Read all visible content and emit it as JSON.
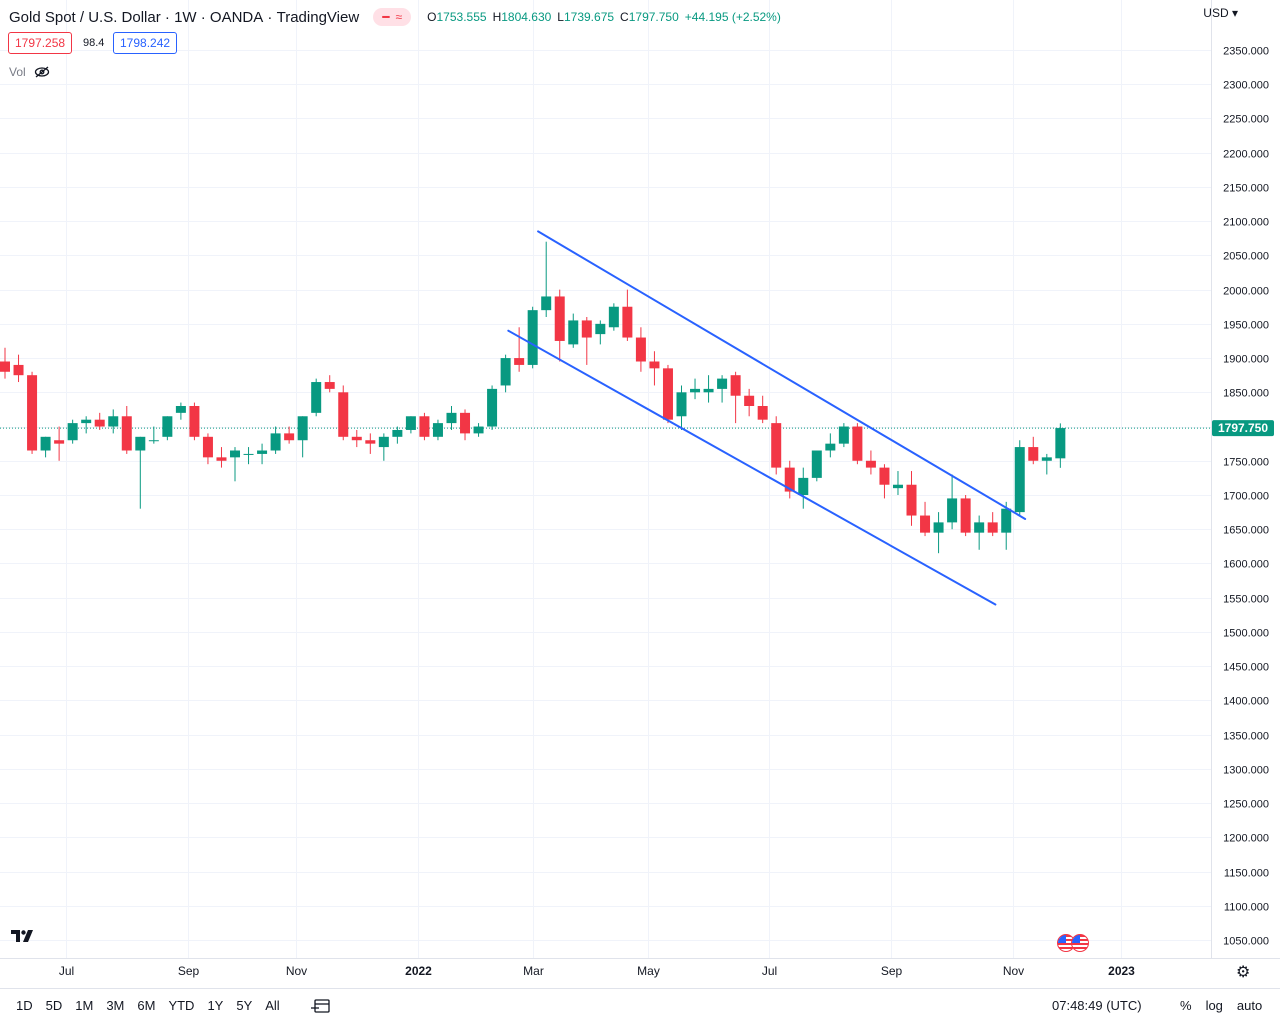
{
  "legend": {
    "symbol": "Gold Spot / U.S. Dollar",
    "interval": "1W",
    "exchange": "OANDA",
    "brand": "TradingView",
    "ohlc": {
      "o_label": "O",
      "o": "1753.555",
      "h_label": "H",
      "h": "1804.630",
      "l_label": "L",
      "l": "1739.675",
      "c_label": "C",
      "c": "1797.750",
      "change": "+44.195 (+2.52%)"
    },
    "sell": "1797.258",
    "spread": "98.4",
    "buy": "1798.242",
    "vol_label": "Vol"
  },
  "currency": "USD",
  "last_price": "1797.750",
  "bottom": {
    "ranges": [
      "1D",
      "5D",
      "1M",
      "3M",
      "6M",
      "YTD",
      "1Y",
      "5Y",
      "All"
    ],
    "clock": "07:48:49 (UTC)",
    "percent": "%",
    "log": "log",
    "auto": "auto"
  },
  "icons": [
    "eye-off-icon",
    "calendar-range-icon",
    "gear-icon",
    "tradingview-logo",
    "us-flag-event-icon"
  ],
  "colors": {
    "up": "#089981",
    "down": "#f23645",
    "trendline": "#2962ff",
    "last_price": "#089981"
  },
  "chart_data": {
    "type": "candlestick",
    "interval": "1W",
    "y_range": [
      1000,
      2400
    ],
    "y_ticks": [
      1050,
      1100,
      1150,
      1200,
      1250,
      1300,
      1350,
      1400,
      1450,
      1500,
      1550,
      1600,
      1650,
      1700,
      1750,
      1800,
      1850,
      1900,
      1950,
      2000,
      2050,
      2100,
      2150,
      2200,
      2250,
      2300,
      2350
    ],
    "x_ticks": [
      {
        "label": "Jul",
        "week": 4.5
      },
      {
        "label": "Sep",
        "week": 13.5
      },
      {
        "label": "Nov",
        "week": 21.5
      },
      {
        "label": "2022",
        "week": 30.5
      },
      {
        "label": "Mar",
        "week": 39
      },
      {
        "label": "May",
        "week": 47.5
      },
      {
        "label": "Jul",
        "week": 56.5
      },
      {
        "label": "Sep",
        "week": 65.5
      },
      {
        "label": "Nov",
        "week": 74.5
      },
      {
        "label": "2023",
        "week": 82.5
      }
    ],
    "candles": [
      {
        "w": 0,
        "o": 1895,
        "h": 1915,
        "l": 1870,
        "c": 1880
      },
      {
        "w": 1,
        "o": 1890,
        "h": 1905,
        "l": 1865,
        "c": 1875
      },
      {
        "w": 2,
        "o": 1875,
        "h": 1880,
        "l": 1760,
        "c": 1765
      },
      {
        "w": 3,
        "o": 1765,
        "h": 1785,
        "l": 1755,
        "c": 1785
      },
      {
        "w": 4,
        "o": 1780,
        "h": 1800,
        "l": 1750,
        "c": 1775
      },
      {
        "w": 5,
        "o": 1780,
        "h": 1810,
        "l": 1775,
        "c": 1805
      },
      {
        "w": 6,
        "o": 1805,
        "h": 1815,
        "l": 1790,
        "c": 1810
      },
      {
        "w": 7,
        "o": 1810,
        "h": 1820,
        "l": 1795,
        "c": 1800
      },
      {
        "w": 8,
        "o": 1800,
        "h": 1825,
        "l": 1790,
        "c": 1815
      },
      {
        "w": 9,
        "o": 1815,
        "h": 1830,
        "l": 1760,
        "c": 1765
      },
      {
        "w": 10,
        "o": 1765,
        "h": 1785,
        "l": 1680,
        "c": 1785
      },
      {
        "w": 11,
        "o": 1780,
        "h": 1800,
        "l": 1775,
        "c": 1780
      },
      {
        "w": 12,
        "o": 1785,
        "h": 1815,
        "l": 1780,
        "c": 1815
      },
      {
        "w": 13,
        "o": 1820,
        "h": 1835,
        "l": 1810,
        "c": 1830
      },
      {
        "w": 14,
        "o": 1830,
        "h": 1835,
        "l": 1780,
        "c": 1785
      },
      {
        "w": 15,
        "o": 1785,
        "h": 1790,
        "l": 1745,
        "c": 1755
      },
      {
        "w": 16,
        "o": 1755,
        "h": 1770,
        "l": 1740,
        "c": 1750
      },
      {
        "w": 17,
        "o": 1755,
        "h": 1770,
        "l": 1720,
        "c": 1765
      },
      {
        "w": 18,
        "o": 1760,
        "h": 1770,
        "l": 1745,
        "c": 1760
      },
      {
        "w": 19,
        "o": 1760,
        "h": 1775,
        "l": 1745,
        "c": 1765
      },
      {
        "w": 20,
        "o": 1765,
        "h": 1800,
        "l": 1760,
        "c": 1790
      },
      {
        "w": 21,
        "o": 1790,
        "h": 1800,
        "l": 1775,
        "c": 1780
      },
      {
        "w": 22,
        "o": 1780,
        "h": 1815,
        "l": 1755,
        "c": 1815
      },
      {
        "w": 23,
        "o": 1820,
        "h": 1870,
        "l": 1815,
        "c": 1865
      },
      {
        "w": 24,
        "o": 1865,
        "h": 1875,
        "l": 1850,
        "c": 1855
      },
      {
        "w": 25,
        "o": 1850,
        "h": 1860,
        "l": 1780,
        "c": 1785
      },
      {
        "w": 26,
        "o": 1785,
        "h": 1795,
        "l": 1770,
        "c": 1780
      },
      {
        "w": 27,
        "o": 1780,
        "h": 1790,
        "l": 1760,
        "c": 1775
      },
      {
        "w": 28,
        "o": 1770,
        "h": 1790,
        "l": 1750,
        "c": 1785
      },
      {
        "w": 29,
        "o": 1785,
        "h": 1800,
        "l": 1775,
        "c": 1795
      },
      {
        "w": 30,
        "o": 1795,
        "h": 1815,
        "l": 1790,
        "c": 1815
      },
      {
        "w": 31,
        "o": 1815,
        "h": 1820,
        "l": 1780,
        "c": 1785
      },
      {
        "w": 32,
        "o": 1785,
        "h": 1810,
        "l": 1780,
        "c": 1805
      },
      {
        "w": 33,
        "o": 1805,
        "h": 1830,
        "l": 1795,
        "c": 1820
      },
      {
        "w": 34,
        "o": 1820,
        "h": 1825,
        "l": 1780,
        "c": 1790
      },
      {
        "w": 35,
        "o": 1790,
        "h": 1805,
        "l": 1785,
        "c": 1800
      },
      {
        "w": 36,
        "o": 1800,
        "h": 1860,
        "l": 1795,
        "c": 1855
      },
      {
        "w": 37,
        "o": 1860,
        "h": 1905,
        "l": 1850,
        "c": 1900
      },
      {
        "w": 38,
        "o": 1900,
        "h": 1945,
        "l": 1880,
        "c": 1890
      },
      {
        "w": 39,
        "o": 1890,
        "h": 1975,
        "l": 1885,
        "c": 1970
      },
      {
        "w": 40,
        "o": 1970,
        "h": 2070,
        "l": 1960,
        "c": 1990
      },
      {
        "w": 41,
        "o": 1990,
        "h": 2000,
        "l": 1895,
        "c": 1925
      },
      {
        "w": 42,
        "o": 1920,
        "h": 1965,
        "l": 1915,
        "c": 1955
      },
      {
        "w": 43,
        "o": 1955,
        "h": 1960,
        "l": 1890,
        "c": 1930
      },
      {
        "w": 44,
        "o": 1935,
        "h": 1955,
        "l": 1920,
        "c": 1950
      },
      {
        "w": 45,
        "o": 1945,
        "h": 1980,
        "l": 1940,
        "c": 1975
      },
      {
        "w": 46,
        "o": 1975,
        "h": 2000,
        "l": 1925,
        "c": 1930
      },
      {
        "w": 47,
        "o": 1930,
        "h": 1945,
        "l": 1880,
        "c": 1895
      },
      {
        "w": 48,
        "o": 1895,
        "h": 1910,
        "l": 1860,
        "c": 1885
      },
      {
        "w": 49,
        "o": 1885,
        "h": 1890,
        "l": 1805,
        "c": 1810
      },
      {
        "w": 50,
        "o": 1815,
        "h": 1860,
        "l": 1795,
        "c": 1850
      },
      {
        "w": 51,
        "o": 1850,
        "h": 1870,
        "l": 1840,
        "c": 1855
      },
      {
        "w": 52,
        "o": 1850,
        "h": 1875,
        "l": 1835,
        "c": 1855
      },
      {
        "w": 53,
        "o": 1855,
        "h": 1875,
        "l": 1835,
        "c": 1870
      },
      {
        "w": 54,
        "o": 1875,
        "h": 1880,
        "l": 1805,
        "c": 1845
      },
      {
        "w": 55,
        "o": 1845,
        "h": 1855,
        "l": 1815,
        "c": 1830
      },
      {
        "w": 56,
        "o": 1830,
        "h": 1845,
        "l": 1805,
        "c": 1810
      },
      {
        "w": 57,
        "o": 1805,
        "h": 1815,
        "l": 1730,
        "c": 1740
      },
      {
        "w": 58,
        "o": 1740,
        "h": 1750,
        "l": 1695,
        "c": 1705
      },
      {
        "w": 59,
        "o": 1700,
        "h": 1740,
        "l": 1680,
        "c": 1725
      },
      {
        "w": 60,
        "o": 1725,
        "h": 1765,
        "l": 1720,
        "c": 1765
      },
      {
        "w": 61,
        "o": 1765,
        "h": 1790,
        "l": 1755,
        "c": 1775
      },
      {
        "w": 62,
        "o": 1775,
        "h": 1805,
        "l": 1770,
        "c": 1800
      },
      {
        "w": 63,
        "o": 1800,
        "h": 1805,
        "l": 1745,
        "c": 1750
      },
      {
        "w": 64,
        "o": 1750,
        "h": 1765,
        "l": 1730,
        "c": 1740
      },
      {
        "w": 65,
        "o": 1740,
        "h": 1745,
        "l": 1695,
        "c": 1715
      },
      {
        "w": 66,
        "o": 1710,
        "h": 1735,
        "l": 1700,
        "c": 1715
      },
      {
        "w": 67,
        "o": 1715,
        "h": 1735,
        "l": 1655,
        "c": 1670
      },
      {
        "w": 68,
        "o": 1670,
        "h": 1690,
        "l": 1640,
        "c": 1645
      },
      {
        "w": 69,
        "o": 1645,
        "h": 1675,
        "l": 1615,
        "c": 1660
      },
      {
        "w": 70,
        "o": 1660,
        "h": 1730,
        "l": 1650,
        "c": 1695
      },
      {
        "w": 71,
        "o": 1695,
        "h": 1700,
        "l": 1640,
        "c": 1645
      },
      {
        "w": 72,
        "o": 1645,
        "h": 1670,
        "l": 1620,
        "c": 1660
      },
      {
        "w": 73,
        "o": 1660,
        "h": 1675,
        "l": 1640,
        "c": 1645
      },
      {
        "w": 74,
        "o": 1645,
        "h": 1690,
        "l": 1620,
        "c": 1680
      },
      {
        "w": 75,
        "o": 1675,
        "h": 1780,
        "l": 1670,
        "c": 1770
      },
      {
        "w": 76,
        "o": 1770,
        "h": 1785,
        "l": 1745,
        "c": 1750
      },
      {
        "w": 77,
        "o": 1750,
        "h": 1760,
        "l": 1730,
        "c": 1755
      },
      {
        "w": 78,
        "o": 1753.555,
        "h": 1804.63,
        "l": 1739.675,
        "c": 1797.75
      }
    ],
    "trendlines": [
      {
        "name": "channel-upper",
        "from": {
          "week": 39.4,
          "price": 2085
        },
        "to": {
          "week": 75.4,
          "price": 1665
        }
      },
      {
        "name": "channel-lower",
        "from": {
          "week": 37.2,
          "price": 1940
        },
        "to": {
          "week": 73.2,
          "price": 1540
        }
      }
    ]
  }
}
